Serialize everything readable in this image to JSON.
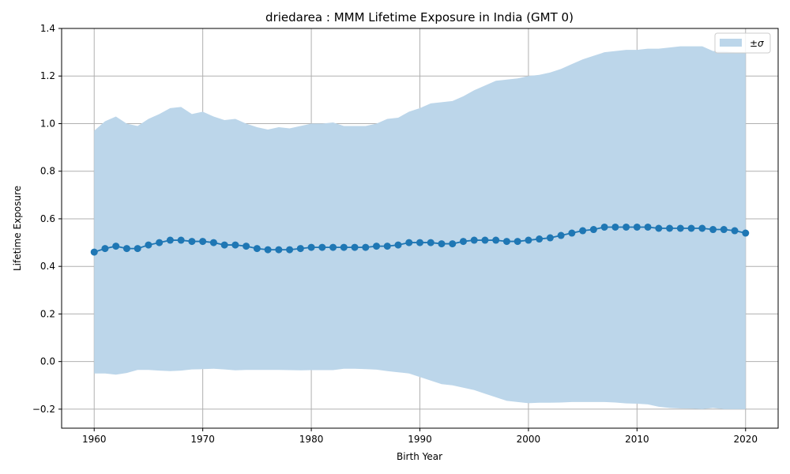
{
  "chart_data": {
    "type": "line",
    "title": "driedarea : MMM Lifetime Exposure in India (GMT 0)",
    "xlabel": "Birth Year",
    "ylabel": "Lifetime Exposure",
    "xlim": [
      1957,
      2023
    ],
    "ylim": [
      -0.28,
      1.4
    ],
    "xticks": [
      1960,
      1970,
      1980,
      1990,
      2000,
      2010,
      2020
    ],
    "yticks": [
      -0.2,
      0.0,
      0.2,
      0.4,
      0.6,
      0.8,
      1.0,
      1.2,
      1.4
    ],
    "ytick_labels": [
      "−0.2",
      "0.0",
      "0.2",
      "0.4",
      "0.6",
      "0.8",
      "1.0",
      "1.2",
      "1.4"
    ],
    "grid": true,
    "legend": {
      "position": "top-right",
      "entries": [
        "±σ"
      ]
    },
    "colors": {
      "line": "#1f77b4",
      "band": "#bcd6ea",
      "grid": "#b0b0b0"
    },
    "x": [
      1960,
      1961,
      1962,
      1963,
      1964,
      1965,
      1966,
      1967,
      1968,
      1969,
      1970,
      1971,
      1972,
      1973,
      1974,
      1975,
      1976,
      1977,
      1978,
      1979,
      1980,
      1981,
      1982,
      1983,
      1984,
      1985,
      1986,
      1987,
      1988,
      1989,
      1990,
      1991,
      1992,
      1993,
      1994,
      1995,
      1996,
      1997,
      1998,
      1999,
      2000,
      2001,
      2002,
      2003,
      2004,
      2005,
      2006,
      2007,
      2008,
      2009,
      2010,
      2011,
      2012,
      2013,
      2014,
      2015,
      2016,
      2017,
      2018,
      2019,
      2020
    ],
    "series": [
      {
        "values": [
          0.46,
          0.475,
          0.485,
          0.475,
          0.475,
          0.49,
          0.5,
          0.51,
          0.51,
          0.505,
          0.505,
          0.5,
          0.49,
          0.49,
          0.485,
          0.475,
          0.47,
          0.47,
          0.47,
          0.475,
          0.48,
          0.48,
          0.48,
          0.48,
          0.48,
          0.48,
          0.485,
          0.485,
          0.49,
          0.5,
          0.5,
          0.5,
          0.495,
          0.495,
          0.505,
          0.51,
          0.51,
          0.51,
          0.505,
          0.505,
          0.51,
          0.515,
          0.52,
          0.53,
          0.54,
          0.55,
          0.555,
          0.565,
          0.565,
          0.565,
          0.565,
          0.565,
          0.56,
          0.56,
          0.56,
          0.56,
          0.56,
          0.555,
          0.555,
          0.55,
          0.54
        ]
      }
    ],
    "band": {
      "name": "±σ",
      "upper": [
        0.97,
        1.01,
        1.03,
        1.0,
        0.99,
        1.02,
        1.04,
        1.065,
        1.07,
        1.04,
        1.05,
        1.03,
        1.015,
        1.02,
        1.0,
        0.985,
        0.975,
        0.985,
        0.98,
        0.99,
        1.0,
        1.0,
        1.005,
        0.99,
        0.99,
        0.99,
        1.0,
        1.02,
        1.025,
        1.05,
        1.065,
        1.085,
        1.09,
        1.095,
        1.115,
        1.14,
        1.16,
        1.18,
        1.185,
        1.19,
        1.2,
        1.205,
        1.215,
        1.23,
        1.25,
        1.27,
        1.285,
        1.3,
        1.305,
        1.31,
        1.31,
        1.315,
        1.315,
        1.32,
        1.325,
        1.325,
        1.325,
        1.305,
        1.305,
        1.3,
        1.3
      ],
      "lower": [
        -0.05,
        -0.05,
        -0.055,
        -0.048,
        -0.035,
        -0.035,
        -0.038,
        -0.04,
        -0.038,
        -0.033,
        -0.032,
        -0.03,
        -0.033,
        -0.037,
        -0.035,
        -0.035,
        -0.035,
        -0.035,
        -0.036,
        -0.037,
        -0.036,
        -0.036,
        -0.036,
        -0.03,
        -0.03,
        -0.032,
        -0.034,
        -0.04,
        -0.045,
        -0.05,
        -0.065,
        -0.08,
        -0.095,
        -0.1,
        -0.11,
        -0.12,
        -0.135,
        -0.15,
        -0.165,
        -0.17,
        -0.175,
        -0.173,
        -0.173,
        -0.172,
        -0.17,
        -0.17,
        -0.17,
        -0.17,
        -0.172,
        -0.176,
        -0.177,
        -0.18,
        -0.19,
        -0.195,
        -0.197,
        -0.198,
        -0.2,
        -0.195,
        -0.2,
        -0.2,
        -0.2
      ]
    }
  }
}
